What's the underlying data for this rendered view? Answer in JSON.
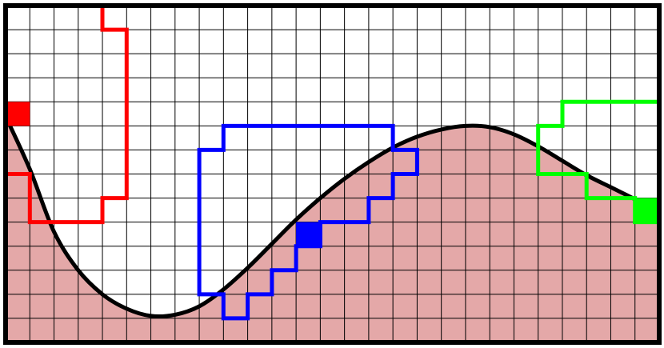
{
  "board": {
    "cols": 27,
    "rows": 14,
    "colors": {
      "background": "#ffffff",
      "grid_line": "#000000",
      "frame": "#000000",
      "terrain_fill": "#e4a8a8",
      "curve": "#000000"
    }
  },
  "curve": {
    "description_points_in_cells": [
      [
        0,
        4.6
      ],
      [
        1,
        6.8
      ],
      [
        2,
        9.4
      ],
      [
        3,
        11.0
      ],
      [
        4,
        12.0
      ],
      [
        5,
        12.6
      ],
      [
        6,
        12.9
      ],
      [
        7,
        12.85
      ],
      [
        8,
        12.5
      ],
      [
        9,
        11.8
      ],
      [
        10,
        10.9
      ],
      [
        11,
        9.9
      ],
      [
        12,
        8.9
      ],
      [
        13,
        8.0
      ],
      [
        14,
        7.2
      ],
      [
        15,
        6.5
      ],
      [
        16,
        5.9
      ],
      [
        17,
        5.45
      ],
      [
        18,
        5.15
      ],
      [
        19,
        5.0
      ],
      [
        20,
        5.05
      ],
      [
        21,
        5.35
      ],
      [
        22,
        5.85
      ],
      [
        23,
        6.45
      ],
      [
        24,
        7.05
      ],
      [
        25,
        7.55
      ],
      [
        26,
        8.05
      ],
      [
        27,
        8.6
      ]
    ]
  },
  "regions": [
    {
      "name": "red-region",
      "color": "#ff0000",
      "outline_in_cells": [
        [
          0,
          0
        ],
        [
          4,
          0
        ],
        [
          4,
          1
        ],
        [
          5,
          1
        ],
        [
          5,
          8
        ],
        [
          4,
          8
        ],
        [
          4,
          9
        ],
        [
          1,
          9
        ],
        [
          1,
          7
        ],
        [
          0,
          7
        ]
      ],
      "highlighted_cells": [
        [
          0,
          4
        ]
      ]
    },
    {
      "name": "blue-region",
      "color": "#0000ff",
      "outline_in_cells": [
        [
          9,
          5
        ],
        [
          16,
          5
        ],
        [
          16,
          6
        ],
        [
          17,
          6
        ],
        [
          17,
          7
        ],
        [
          16,
          7
        ],
        [
          16,
          8
        ],
        [
          15,
          8
        ],
        [
          15,
          9
        ],
        [
          13,
          9
        ],
        [
          13,
          10
        ],
        [
          12,
          10
        ],
        [
          12,
          11
        ],
        [
          11,
          11
        ],
        [
          11,
          12
        ],
        [
          10,
          12
        ],
        [
          10,
          13
        ],
        [
          9,
          13
        ],
        [
          9,
          12
        ],
        [
          8,
          12
        ],
        [
          8,
          6
        ],
        [
          9,
          6
        ]
      ],
      "highlighted_cells": [
        [
          12,
          9
        ]
      ]
    },
    {
      "name": "green-region",
      "color": "#00ff00",
      "outline_in_cells": [
        [
          23,
          4
        ],
        [
          27,
          4
        ],
        [
          27,
          9
        ],
        [
          26,
          9
        ],
        [
          26,
          8
        ],
        [
          24,
          8
        ],
        [
          24,
          7
        ],
        [
          22,
          7
        ],
        [
          22,
          5
        ],
        [
          23,
          5
        ]
      ],
      "highlighted_cells": [
        [
          26,
          8
        ]
      ]
    }
  ]
}
